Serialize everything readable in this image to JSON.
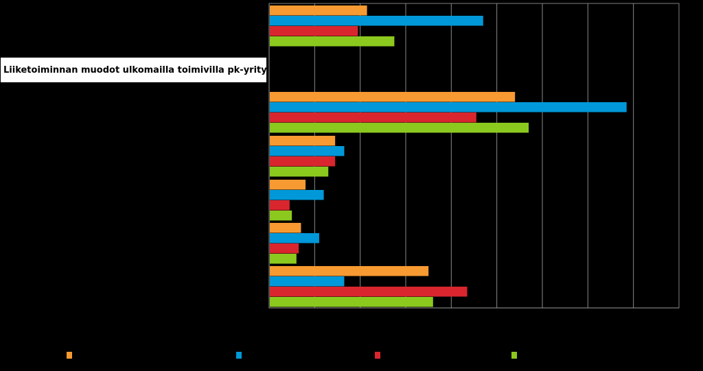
{
  "chart_data": {
    "type": "bar",
    "orientation": "horizontal",
    "title": "Liiketoiminnan muodot ulkomailla toimivilla pk-yrityksillä",
    "xlim": [
      0,
      90
    ],
    "grid": true,
    "groups": 7,
    "series": [
      {
        "color": "#F79A32",
        "values": [
          21.5,
          null,
          54,
          14.5,
          8,
          7,
          35
        ]
      },
      {
        "color": "#0098D8",
        "values": [
          47,
          null,
          78.5,
          16.5,
          12,
          11,
          16.5
        ]
      },
      {
        "color": "#D9262E",
        "values": [
          19.5,
          null,
          45.5,
          14.5,
          4.5,
          6.5,
          43.5
        ]
      },
      {
        "color": "#8CC91E",
        "values": [
          27.5,
          null,
          57,
          13,
          5,
          6,
          36
        ]
      }
    ]
  }
}
